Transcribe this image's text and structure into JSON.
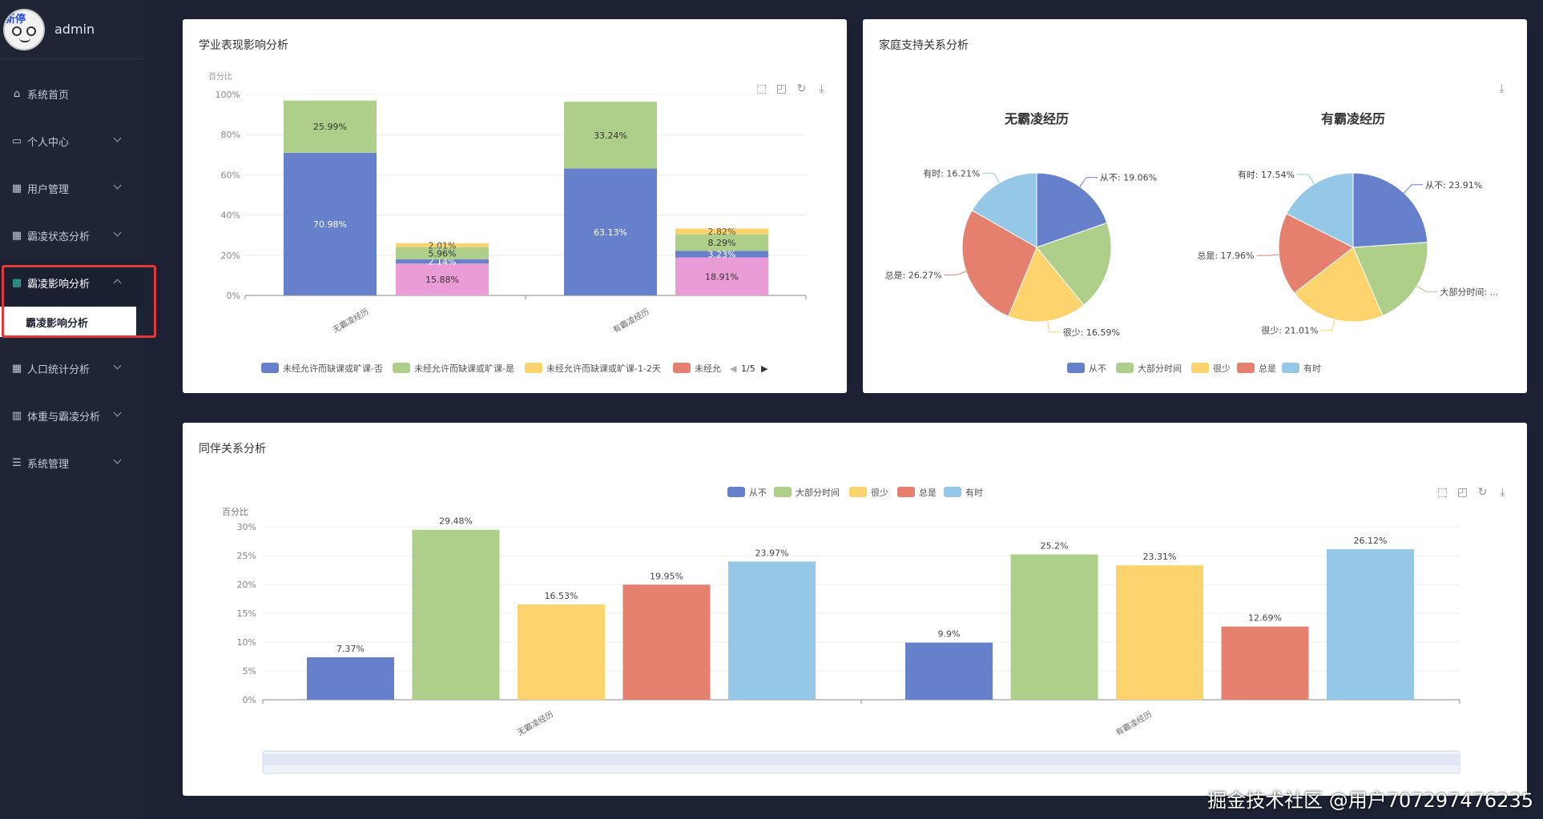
{
  "user": {
    "name": "admin",
    "avatar_tag": "新停"
  },
  "menu": {
    "items": [
      {
        "label": "系统首页",
        "icon": "home-icon",
        "glyph": "⌂"
      },
      {
        "label": "个人中心",
        "icon": "card-icon",
        "glyph": "▭"
      },
      {
        "label": "用户管理",
        "icon": "grid-icon",
        "glyph": "▦"
      },
      {
        "label": "霸凌状态分析",
        "icon": "grid-icon",
        "glyph": "▦"
      },
      {
        "label": "霸凌影响分析",
        "icon": "grid-icon",
        "glyph": "▦"
      },
      {
        "label": "人口统计分析",
        "icon": "grid-icon",
        "glyph": "▦"
      },
      {
        "label": "体重与霸凌分析",
        "icon": "bar-chart-icon",
        "glyph": "▥"
      },
      {
        "label": "系统管理",
        "icon": "list-icon",
        "glyph": "☰"
      }
    ],
    "submenu": "霸凌影响分析"
  },
  "colors": {
    "blue": "#6680cc",
    "green": "#aecf8a",
    "yellow": "#fcd36d",
    "red": "#e57f6e",
    "lightblue": "#94c8e6",
    "pink": "#e99cd6"
  },
  "academic": {
    "title": "学业表现影响分析",
    "chart_data": {
      "type": "bar",
      "stacked": true,
      "categories": [
        "无霸凌经历",
        "有霸凌经历"
      ],
      "ylabel": "百分比",
      "ylim": [
        0,
        100
      ],
      "yticks": [
        "0%",
        "20%",
        "40%",
        "60%",
        "80%",
        "100%"
      ],
      "legend": [
        "未经允许而缺课或旷课-否",
        "未经允许而缺课或旷课-是",
        "未经允许而缺课或旷课-1-2天",
        "未经允"
      ],
      "legend_page": "1/5",
      "groups": [
        {
          "segments": [
            {
              "value": 70.98,
              "label": "70.98%",
              "color": "blue"
            },
            {
              "value": 25.99,
              "label": "25.99%",
              "color": "green"
            }
          ]
        },
        {
          "segments": [
            {
              "value": 15.88,
              "label": "15.88%",
              "color": "pink"
            },
            {
              "value": 2.14,
              "label": "2.14%",
              "color": "blue"
            },
            {
              "value": 5.96,
              "label": "5.96%",
              "color": "green"
            },
            {
              "value": 2.01,
              "label": "2.01%",
              "color": "yellow"
            }
          ]
        },
        {
          "segments": [
            {
              "value": 63.13,
              "label": "63.13%",
              "color": "blue"
            },
            {
              "value": 33.24,
              "label": "33.24%",
              "color": "green"
            }
          ]
        },
        {
          "segments": [
            {
              "value": 18.91,
              "label": "18.91%",
              "color": "pink"
            },
            {
              "value": 3.23,
              "label": "3.23%",
              "color": "blue"
            },
            {
              "value": 8.29,
              "label": "8.29%",
              "color": "green"
            },
            {
              "value": 2.82,
              "label": "2.82%",
              "color": "yellow"
            }
          ]
        }
      ]
    }
  },
  "family": {
    "title": "家庭支持关系分析",
    "chart_data": {
      "type": "pie",
      "legend": [
        "从不",
        "大部分时间",
        "很少",
        "总是",
        "有时"
      ],
      "pies": [
        {
          "title": "无霸凌经历",
          "slices": [
            {
              "name": "从不",
              "value": 19.06,
              "label": "从不: 19.06%"
            },
            {
              "name": "大部分时间",
              "value": 18.87,
              "label": ""
            },
            {
              "name": "很少",
              "value": 16.59,
              "label": "很少: 16.59%"
            },
            {
              "name": "总是",
              "value": 26.27,
              "label": "总是: 26.27%"
            },
            {
              "name": "有时",
              "value": 16.21,
              "label": "有时: 16.21%"
            }
          ]
        },
        {
          "title": "有霸凌经历",
          "slices": [
            {
              "name": "从不",
              "value": 23.91,
              "label": "从不: 23.91%"
            },
            {
              "name": "大部分时间",
              "value": 19.58,
              "label": "大部分时间: ..."
            },
            {
              "name": "很少",
              "value": 21.01,
              "label": "很少: 21.01%"
            },
            {
              "name": "总是",
              "value": 17.96,
              "label": "总是: 17.96%"
            },
            {
              "name": "有时",
              "value": 17.54,
              "label": "有时: 17.54%"
            }
          ]
        }
      ]
    }
  },
  "peer": {
    "title": "同伴关系分析",
    "chart_data": {
      "type": "bar",
      "categories": [
        "无霸凌经历",
        "有霸凌经历"
      ],
      "ylabel": "百分比",
      "ylim": [
        0,
        30
      ],
      "yticks": [
        "0%",
        "5%",
        "10%",
        "15%",
        "20%",
        "25%",
        "30%"
      ],
      "series": [
        {
          "name": "从不",
          "color": "blue",
          "values": [
            7.37,
            9.9
          ],
          "labels": [
            "7.37%",
            "9.9%"
          ]
        },
        {
          "name": "大部分时间",
          "color": "green",
          "values": [
            29.48,
            25.2
          ],
          "labels": [
            "29.48%",
            "25.2%"
          ]
        },
        {
          "name": "很少",
          "color": "yellow",
          "values": [
            16.53,
            23.31
          ],
          "labels": [
            "16.53%",
            "23.31%"
          ]
        },
        {
          "name": "总是",
          "color": "red",
          "values": [
            19.95,
            12.69
          ],
          "labels": [
            "19.95%",
            "12.69%"
          ]
        },
        {
          "name": "有时",
          "color": "lightblue",
          "values": [
            23.97,
            26.12
          ],
          "labels": [
            "23.97%",
            "26.12%"
          ]
        }
      ]
    }
  },
  "watermark": "掘金技术社区 @用户707297476235"
}
